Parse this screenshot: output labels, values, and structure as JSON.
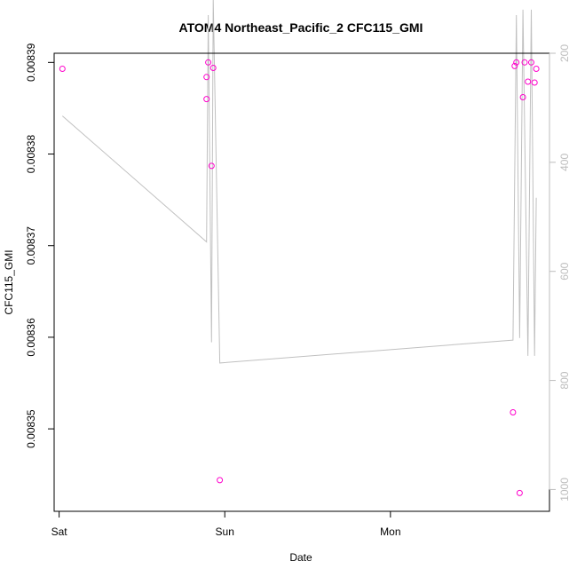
{
  "chart_data": {
    "type": "scatter",
    "title": "ATOM4 Northeast_Pacific_2 CFC115_GMI",
    "xlabel": "Date",
    "ylabel": "CFC115_GMI",
    "x_ticks": [
      "Sat",
      "Sun",
      "Mon"
    ],
    "y_ticks": [
      "0.00835",
      "0.00836",
      "0.00837",
      "0.00838",
      "0.00839"
    ],
    "y_ticks_right": [
      "200",
      "400",
      "600",
      "800",
      "1000"
    ],
    "colors": {
      "points": "#ff00cc",
      "pressure_line": "#c0c0c0",
      "frame": "#000000",
      "right_axis": "#bdbdbd"
    },
    "x_range_days_from_sat_start": [
      -0.03,
      2.96
    ],
    "ylim": [
      0.008341,
      0.008391
    ],
    "ylim_right": [
      200,
      1040
    ],
    "grid": false,
    "series": [
      {
        "points": [
          {
            "x": 0.02,
            "y": 0.0083893
          },
          {
            "x": 0.89,
            "y": 0.008386
          },
          {
            "x": 0.89,
            "y": 0.0083884
          },
          {
            "x": 0.9,
            "y": 0.00839
          },
          {
            "x": 0.92,
            "y": 0.0083787
          },
          {
            "x": 0.93,
            "y": 0.0083894
          },
          {
            "x": 0.97,
            "y": 0.0083444
          },
          {
            "x": 2.74,
            "y": 0.0083518
          },
          {
            "x": 2.75,
            "y": 0.0083896
          },
          {
            "x": 2.76,
            "y": 0.00839
          },
          {
            "x": 2.78,
            "y": 0.008343
          },
          {
            "x": 2.8,
            "y": 0.0083862
          },
          {
            "x": 2.81,
            "y": 0.00839
          },
          {
            "x": 2.83,
            "y": 0.0083879
          },
          {
            "x": 2.85,
            "y": 0.00839
          },
          {
            "x": 2.87,
            "y": 0.0083878
          },
          {
            "x": 2.88,
            "y": 0.0083893
          }
        ]
      },
      {
        "points": [
          {
            "x": 0.02,
            "y": 315
          },
          {
            "x": 0.89,
            "y": 546
          },
          {
            "x": 0.9,
            "y": 130
          },
          {
            "x": 0.92,
            "y": 730
          },
          {
            "x": 0.93,
            "y": 100
          },
          {
            "x": 0.97,
            "y": 768
          },
          {
            "x": 2.74,
            "y": 726
          },
          {
            "x": 2.76,
            "y": 130
          },
          {
            "x": 2.78,
            "y": 722
          },
          {
            "x": 2.8,
            "y": 120
          },
          {
            "x": 2.83,
            "y": 755
          },
          {
            "x": 2.85,
            "y": 120
          },
          {
            "x": 2.87,
            "y": 755
          },
          {
            "x": 2.88,
            "y": 465
          }
        ]
      }
    ]
  }
}
